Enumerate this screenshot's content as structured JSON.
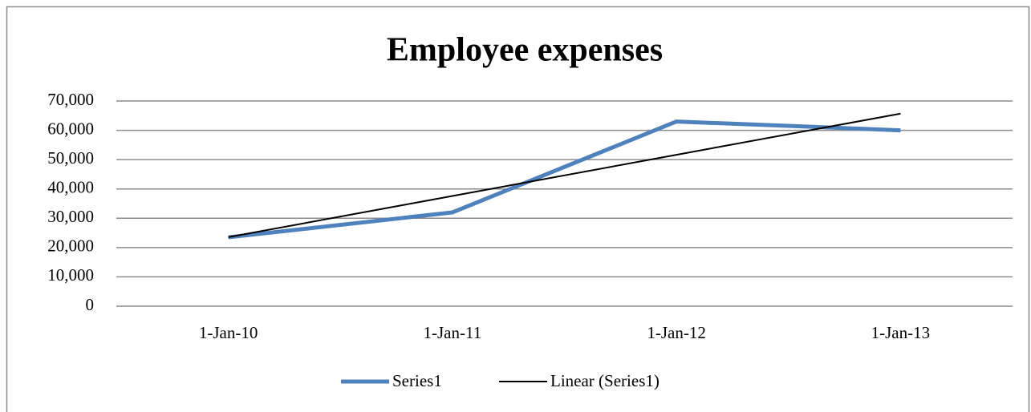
{
  "chart_data": {
    "type": "line",
    "title": "Employee expenses",
    "categories": [
      "1-Jan-10",
      "1-Jan-11",
      "1-Jan-12",
      "1-Jan-13"
    ],
    "series": [
      {
        "name": "Series1",
        "color": "#4f81bd",
        "values": [
          23500,
          32000,
          63000,
          60000
        ]
      },
      {
        "name": "Linear (Series1)",
        "color": "#000000",
        "values": [
          23550,
          37600,
          51650,
          65700
        ]
      }
    ],
    "ylim": [
      0,
      70000
    ],
    "yticks": [
      0,
      {
        "value": 10000,
        "label": "10,000"
      },
      {
        "value": 20000,
        "label": "20,000"
      },
      {
        "value": 30000,
        "label": "30,000"
      },
      {
        "value": 40000,
        "label": "40,000"
      },
      {
        "value": 50000,
        "label": "50,000"
      },
      {
        "value": 60000,
        "label": "60,000"
      },
      {
        "value": 70000,
        "label": "70,000"
      }
    ],
    "grid": true,
    "legend": "bottom"
  }
}
